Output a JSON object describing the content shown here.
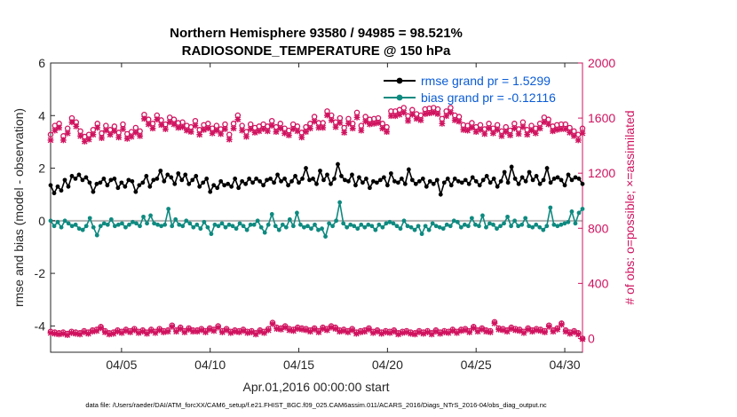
{
  "chart_data": {
    "type": "line",
    "title": "Northern Hemisphere 93580 / 94985 = 98.521%",
    "subtitle": "RADIOSONDE_TEMPERATURE @ 150 hPa",
    "xlabel": "Apr.01,2016 00:00:00 start",
    "ylabel": "rmse and bias (model - observation)",
    "ylabel_right": "# of obs: o=possible; ×=assimilated",
    "footer": "data file: /Users/raeder/DAI/ATM_forcXX/CAM6_setup/f.e21.FHIST_BGC.f09_025.CAM6assim.011/ACARS_2016/Diags_NTrS_2016-04/obs_diag_output.nc",
    "xlim": [
      1,
      31
    ],
    "ylim": [
      -5,
      6
    ],
    "ylim_right": [
      -100,
      2000
    ],
    "x_ticks": [
      5,
      10,
      15,
      20,
      25,
      30
    ],
    "x_tick_labels": [
      "04/05",
      "04/10",
      "04/15",
      "04/20",
      "04/25",
      "04/30"
    ],
    "y_ticks": [
      -4,
      -2,
      0,
      2,
      4,
      6
    ],
    "y_tick_labels": [
      "-4",
      "-2",
      "0",
      "2",
      "4",
      "6"
    ],
    "y_right_ticks": [
      0,
      400,
      800,
      1200,
      1600,
      2000
    ],
    "y_right_tick_labels": [
      "0",
      "400",
      "800",
      "1200",
      "1600",
      "2000"
    ],
    "legend": [
      {
        "label": "rmse grand pr = 1.5299",
        "color": "#000000"
      },
      {
        "label": "bias grand pr = -0.12116",
        "color": "#0e8a80"
      }
    ],
    "colors": {
      "rmse": "#000000",
      "bias": "#0e8a80",
      "obs": "#d0135f",
      "zero_line": "#b3b3b3"
    },
    "rmse": [
      1.35,
      1.05,
      1.3,
      1.15,
      1.55,
      1.3,
      1.7,
      1.6,
      1.75,
      1.55,
      1.65,
      1.45,
      1.1,
      1.4,
      1.45,
      1.6,
      1.35,
      1.55,
      1.6,
      1.25,
      1.45,
      1.3,
      1.55,
      1.5,
      1.1,
      1.35,
      1.45,
      1.7,
      1.3,
      1.55,
      1.6,
      1.9,
      1.5,
      1.75,
      1.65,
      1.4,
      1.8,
      1.55,
      1.75,
      1.4,
      1.55,
      1.7,
      1.3,
      1.45,
      1.6,
      1.1,
      1.35,
      1.25,
      1.5,
      1.35,
      1.4,
      1.3,
      1.6,
      1.25,
      1.5,
      1.4,
      1.6,
      1.45,
      1.6,
      1.5,
      1.35,
      1.55,
      1.6,
      1.45,
      1.75,
      1.5,
      1.6,
      1.35,
      1.5,
      1.7,
      1.45,
      1.6,
      2.0,
      1.55,
      1.6,
      1.4,
      1.9,
      1.55,
      1.75,
      1.4,
      1.6,
      2.15,
      1.7,
      1.55,
      1.5,
      1.75,
      1.35,
      1.65,
      1.45,
      1.6,
      1.25,
      1.5,
      1.45,
      1.55,
      1.65,
      1.35,
      1.8,
      1.5,
      1.45,
      1.6,
      1.4,
      1.95,
      1.55,
      1.4,
      1.5,
      1.6,
      1.3,
      1.5,
      1.4,
      1.55,
      1.0,
      1.45,
      1.6,
      1.35,
      1.6,
      1.5,
      1.45,
      1.55,
      1.4,
      1.65,
      1.5,
      1.35,
      1.55,
      1.7,
      1.45,
      1.6,
      1.3,
      1.5,
      1.85,
      1.45,
      2.05,
      1.6,
      1.4,
      1.65,
      1.5,
      1.85,
      1.55,
      1.7,
      1.4,
      1.55,
      2.0,
      1.45,
      1.6,
      1.65,
      1.55,
      1.35,
      1.75,
      1.55,
      1.65,
      1.6,
      1.4
    ],
    "bias": [
      0.0,
      -0.2,
      -0.05,
      -0.25,
      0.0,
      -0.1,
      -0.2,
      -0.15,
      -0.3,
      -0.35,
      -0.2,
      0.1,
      -0.25,
      -0.55,
      -0.2,
      -0.1,
      -0.15,
      0.05,
      -0.2,
      -0.15,
      -0.1,
      -0.25,
      -0.15,
      -0.05,
      -0.1,
      -0.2,
      0.15,
      -0.1,
      0.2,
      -0.1,
      -0.15,
      -0.2,
      -0.15,
      0.45,
      -0.2,
      0.05,
      -0.15,
      -0.2,
      0.0,
      -0.1,
      -0.25,
      -0.15,
      -0.3,
      -0.05,
      -0.25,
      -0.5,
      -0.15,
      -0.2,
      -0.1,
      -0.25,
      -0.15,
      -0.2,
      -0.3,
      -0.1,
      -0.2,
      -0.35,
      -0.15,
      -0.15,
      0.0,
      -0.25,
      -0.45,
      -0.15,
      0.25,
      -0.2,
      -0.35,
      -0.15,
      -0.25,
      0.05,
      -0.2,
      0.3,
      -0.15,
      -0.25,
      -0.2,
      -0.3,
      -0.15,
      -0.35,
      -0.3,
      -0.6,
      -0.1,
      -0.2,
      0.0,
      0.7,
      -0.1,
      -0.25,
      -0.15,
      -0.2,
      -0.3,
      -0.15,
      -0.25,
      -0.15,
      -0.2,
      -0.35,
      -0.15,
      -0.25,
      -0.1,
      -0.05,
      -0.1,
      -0.2,
      -0.3,
      0.0,
      -0.2,
      -0.25,
      -0.35,
      -0.2,
      -0.5,
      -0.2,
      -0.35,
      -0.1,
      -0.2,
      -0.25,
      -0.3,
      -0.15,
      -0.2,
      0.0,
      -0.05,
      -0.25,
      -0.15,
      -0.2,
      0.1,
      -0.15,
      -0.2,
      0.2,
      -0.25,
      -0.1,
      -0.15,
      -0.3,
      -0.2,
      -0.1,
      0.15,
      -0.2,
      0.0,
      -0.2,
      -0.15,
      0.1,
      -0.2,
      -0.25,
      -0.15,
      -0.25,
      -0.35,
      -0.2,
      0.5,
      -0.15,
      -0.2,
      -0.15,
      -0.1,
      -0.05,
      0.35,
      -0.1,
      0.3,
      0.45
    ],
    "obs_possible": [
      1480,
      1545,
      1560,
      1470,
      1525,
      1600,
      1570,
      1505,
      1465,
      1480,
      1515,
      1560,
      1490,
      1545,
      1515,
      1540,
      1495,
      1555,
      1485,
      1500,
      1530,
      1505,
      1625,
      1590,
      1560,
      1620,
      1585,
      1555,
      1605,
      1590,
      1565,
      1570,
      1545,
      1535,
      1580,
      1515,
      1550,
      1560,
      1525,
      1545,
      1520,
      1555,
      1480,
      1560,
      1620,
      1545,
      1500,
      1555,
      1530,
      1540,
      1555,
      1540,
      1580,
      1535,
      1560,
      1525,
      1510,
      1555,
      1540,
      1495,
      1535,
      1560,
      1610,
      1565,
      1565,
      1650,
      1620,
      1570,
      1600,
      1530,
      1595,
      1560,
      1640,
      1545,
      1610,
      1590,
      1595,
      1600,
      1560,
      1535,
      1650,
      1650,
      1660,
      1675,
      1615,
      1660,
      1630,
      1620,
      1665,
      1670,
      1675,
      1665,
      1595,
      1650,
      1675,
      1620,
      1610,
      1550,
      1545,
      1565,
      1535,
      1550,
      1520,
      1560,
      1525,
      1550,
      1505,
      1535,
      1510,
      1560,
      1520,
      1570,
      1515,
      1545,
      1525,
      1560,
      1605,
      1590,
      1540,
      1550,
      1555,
      1555,
      1530,
      1505,
      1480,
      1525
    ],
    "obs_assimilated": [
      1440,
      1510,
      1530,
      1440,
      1490,
      1570,
      1540,
      1470,
      1430,
      1445,
      1480,
      1530,
      1455,
      1510,
      1480,
      1505,
      1460,
      1520,
      1450,
      1465,
      1495,
      1470,
      1595,
      1555,
      1525,
      1590,
      1550,
      1520,
      1570,
      1555,
      1530,
      1535,
      1510,
      1500,
      1545,
      1480,
      1515,
      1525,
      1490,
      1510,
      1485,
      1520,
      1445,
      1525,
      1590,
      1510,
      1465,
      1520,
      1495,
      1505,
      1520,
      1505,
      1545,
      1500,
      1525,
      1490,
      1475,
      1520,
      1505,
      1460,
      1500,
      1525,
      1575,
      1530,
      1530,
      1620,
      1585,
      1535,
      1565,
      1495,
      1560,
      1525,
      1605,
      1510,
      1575,
      1555,
      1560,
      1565,
      1525,
      1500,
      1615,
      1615,
      1625,
      1640,
      1580,
      1625,
      1595,
      1585,
      1630,
      1635,
      1640,
      1630,
      1560,
      1615,
      1640,
      1585,
      1575,
      1515,
      1510,
      1530,
      1500,
      1515,
      1485,
      1525,
      1490,
      1515,
      1470,
      1500,
      1475,
      1525,
      1485,
      1535,
      1480,
      1510,
      1490,
      1525,
      1570,
      1555,
      1505,
      1515,
      1520,
      1520,
      1495,
      1470,
      1440,
      1490
    ],
    "obs_low_possible": [
      50,
      45,
      40,
      45,
      35,
      50,
      45,
      40,
      55,
      45,
      60,
      65,
      85,
      55,
      40,
      45,
      60,
      50,
      65,
      55,
      70,
      50,
      60,
      45,
      65,
      50,
      70,
      55,
      60,
      95,
      60,
      80,
      55,
      75,
      60,
      60,
      70,
      55,
      75,
      65,
      90,
      55,
      70,
      50,
      60,
      55,
      65,
      50,
      55,
      40,
      60,
      50,
      70,
      115,
      80,
      75,
      90,
      70,
      65,
      80,
      75,
      70,
      60,
      75,
      55,
      80,
      70,
      90,
      80,
      60,
      65,
      55,
      70,
      45,
      55,
      60,
      75,
      50,
      60,
      45,
      55,
      50,
      60,
      40,
      50,
      55,
      45,
      40,
      55,
      45,
      55,
      40,
      60,
      45,
      55,
      50,
      65,
      50,
      65,
      70,
      55,
      85,
      60,
      75,
      60,
      55,
      120,
      75,
      70,
      60,
      80,
      70,
      65,
      50,
      75,
      60,
      70,
      65,
      55,
      95,
      60,
      75,
      110,
      60,
      45,
      55,
      40,
      0
    ],
    "obs_low_assimilated": [
      40,
      35,
      30,
      35,
      25,
      40,
      35,
      30,
      45,
      35,
      50,
      55,
      75,
      45,
      30,
      35,
      50,
      40,
      55,
      45,
      60,
      40,
      50,
      35,
      55,
      40,
      60,
      45,
      50,
      85,
      50,
      70,
      45,
      65,
      50,
      50,
      60,
      45,
      65,
      55,
      80,
      45,
      60,
      40,
      50,
      45,
      55,
      40,
      45,
      30,
      50,
      40,
      60,
      105,
      70,
      65,
      80,
      60,
      55,
      70,
      65,
      60,
      50,
      65,
      45,
      70,
      60,
      80,
      70,
      50,
      55,
      45,
      60,
      35,
      45,
      50,
      65,
      40,
      50,
      35,
      45,
      40,
      50,
      30,
      40,
      45,
      35,
      30,
      45,
      35,
      45,
      30,
      50,
      35,
      45,
      40,
      55,
      40,
      55,
      60,
      45,
      75,
      50,
      65,
      50,
      45,
      110,
      65,
      60,
      50,
      70,
      60,
      55,
      40,
      65,
      50,
      60,
      55,
      45,
      85,
      50,
      65,
      100,
      50,
      35,
      45,
      30,
      -5
    ]
  }
}
